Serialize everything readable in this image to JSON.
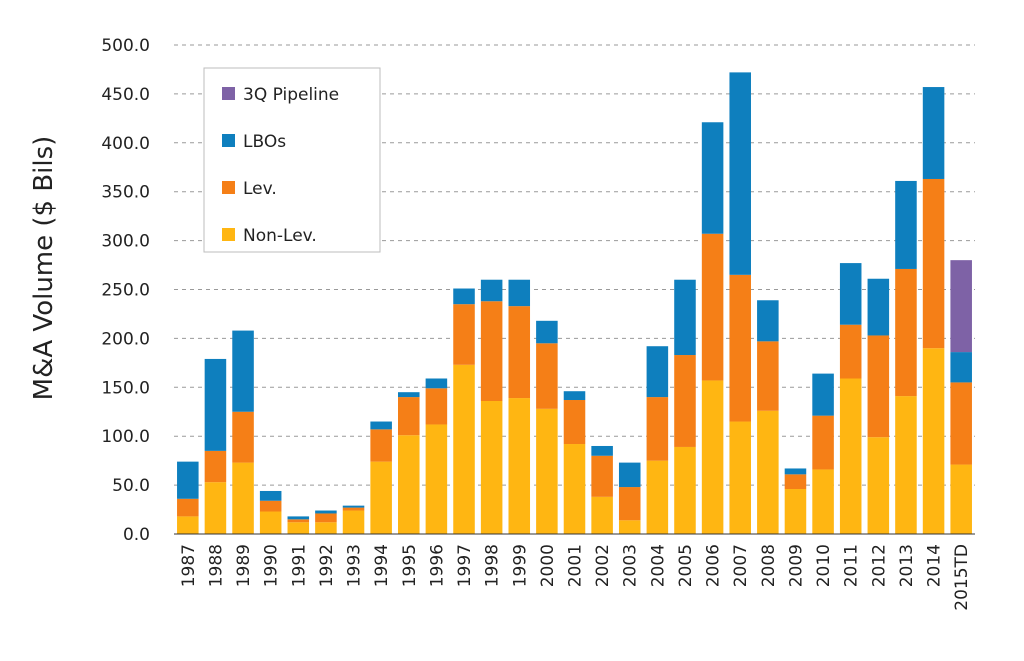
{
  "chart_data": {
    "type": "bar",
    "stacked": true,
    "ylabel": "M&A Volume ($ Bils)",
    "xlabel": "",
    "title": "",
    "ylim": [
      0,
      500
    ],
    "yticks": [
      "0.0",
      "50.0",
      "100.0",
      "150.0",
      "200.0",
      "250.0",
      "300.0",
      "350.0",
      "400.0",
      "450.0",
      "500.0"
    ],
    "grid": true,
    "legend_position": "top-left",
    "categories": [
      "1987",
      "1988",
      "1989",
      "1990",
      "1991",
      "1992",
      "1993",
      "1994",
      "1995",
      "1996",
      "1997",
      "1998",
      "1999",
      "2000",
      "2001",
      "2002",
      "2003",
      "2004",
      "2005",
      "2006",
      "2007",
      "2008",
      "2009",
      "2010",
      "2011",
      "2012",
      "2013",
      "2014",
      "2015TD"
    ],
    "series": [
      {
        "name": "Non-Lev.",
        "color": "#FFB612",
        "values": [
          18,
          53,
          73,
          23,
          12,
          12,
          24,
          74,
          101,
          112,
          173,
          136,
          139,
          128,
          92,
          38,
          14,
          75,
          89,
          157,
          115,
          126,
          46,
          66,
          159,
          99,
          141,
          190,
          71
        ]
      },
      {
        "name": "Lev.",
        "color": "#F57F17",
        "values": [
          18,
          32,
          52,
          11,
          3,
          9,
          3,
          33,
          39,
          37,
          62,
          102,
          94,
          67,
          45,
          42,
          34,
          65,
          94,
          150,
          150,
          71,
          15,
          55,
          55,
          104,
          130,
          173,
          84
        ]
      },
      {
        "name": "LBOs",
        "color": "#0E7FBE",
        "values": [
          38,
          94,
          83,
          10,
          3,
          3,
          2,
          8,
          5,
          10,
          16,
          22,
          27,
          23,
          9,
          10,
          25,
          52,
          77,
          114,
          207,
          42,
          6,
          43,
          63,
          58,
          90,
          94,
          31
        ]
      },
      {
        "name": "3Q Pipeline",
        "color": "#7E62A6",
        "values": [
          0,
          0,
          0,
          0,
          0,
          0,
          0,
          0,
          0,
          0,
          0,
          0,
          0,
          0,
          0,
          0,
          0,
          0,
          0,
          0,
          0,
          0,
          0,
          0,
          0,
          0,
          0,
          0,
          94
        ]
      }
    ],
    "legend_order": [
      "3Q Pipeline",
      "LBOs",
      "Lev.",
      "Non-Lev."
    ]
  }
}
